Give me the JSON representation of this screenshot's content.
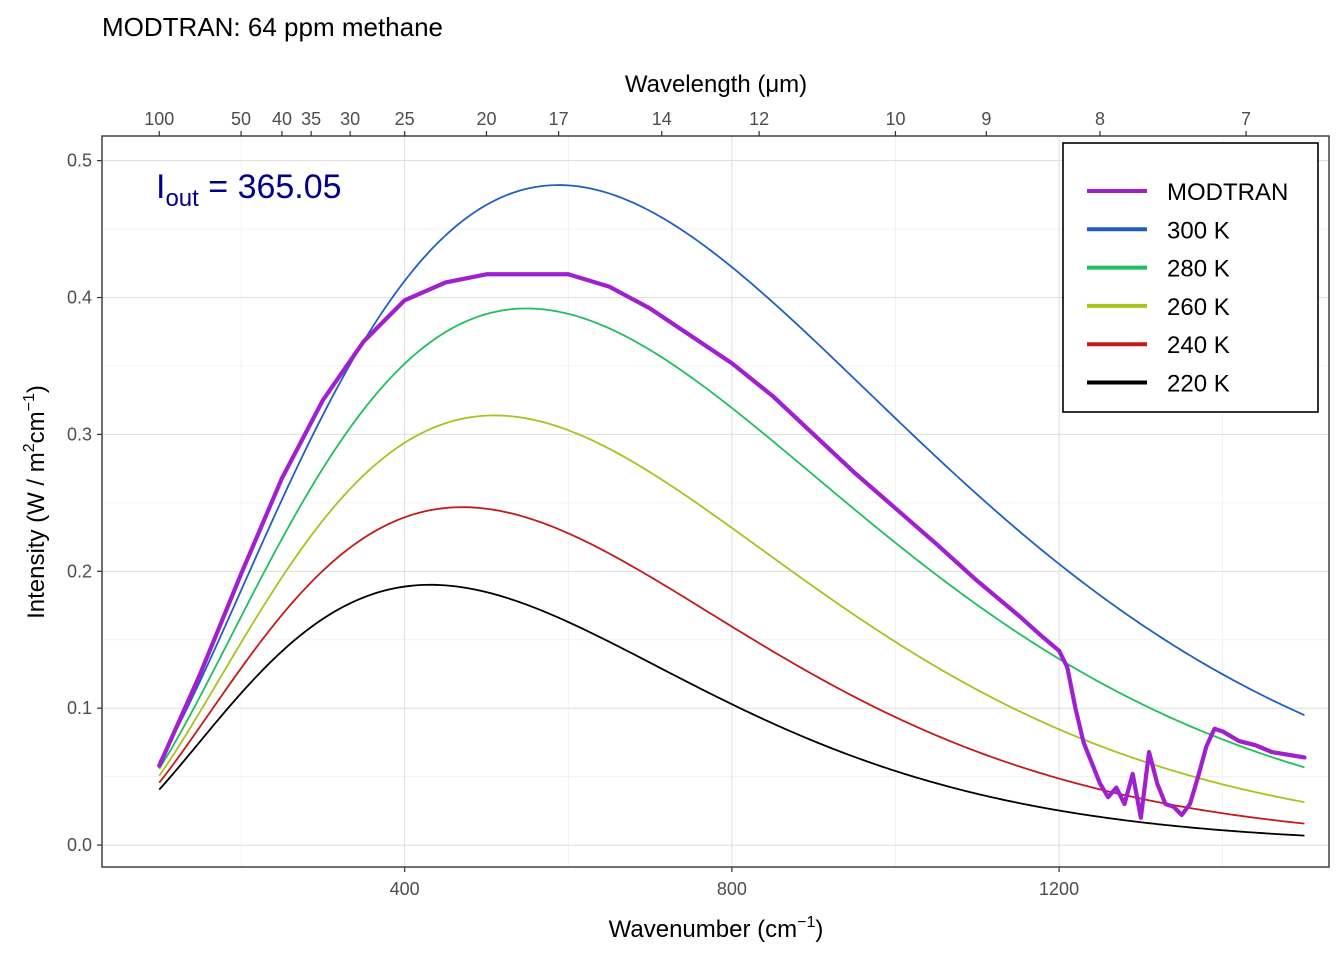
{
  "chart_data": {
    "type": "line",
    "title": "MODTRAN: 64 ppm methane",
    "xlabel": "Wavenumber (cm",
    "xlabel_sup": "−1",
    "xlabel_end": ")",
    "ylabel": "Intensity (W / m",
    "ylabel_sup1": "2",
    "ylabel_mid": "cm",
    "ylabel_sup2": "−1",
    "ylabel_end": ")",
    "x2label": "Wavelength (μm)",
    "annotation": {
      "label": "I",
      "label_sub": "out",
      "label_eq": " = ",
      "value": "365.05",
      "color": "#00008b"
    },
    "xlim": [
      30,
      1530
    ],
    "ylim": [
      -0.016,
      0.518
    ],
    "x_ticks": [
      400,
      800,
      1200
    ],
    "x_tick_labels": [
      "400",
      "800",
      "1200"
    ],
    "y_ticks": [
      0.0,
      0.1,
      0.2,
      0.3,
      0.4,
      0.5
    ],
    "y_tick_labels": [
      "0.0",
      "0.1",
      "0.2",
      "0.3",
      "0.4",
      "0.5"
    ],
    "x2_ticks": [
      100,
      50,
      40,
      35,
      30,
      25,
      20,
      17,
      14,
      12,
      10,
      9,
      8,
      7
    ],
    "x2_tick_labels": [
      "100",
      "50",
      "40",
      "35",
      "30",
      "25",
      "20",
      "17",
      "14",
      "12",
      "10",
      "9",
      "8",
      "7"
    ],
    "grid": true,
    "legend_position": "top-right",
    "series": [
      {
        "name": "MODTRAN",
        "color": "#a020d0",
        "kind": "modtran",
        "x": [
          100,
          150,
          200,
          250,
          300,
          350,
          400,
          450,
          500,
          550,
          600,
          650,
          700,
          750,
          800,
          850,
          900,
          950,
          1000,
          1050,
          1100,
          1150,
          1180,
          1200,
          1210,
          1220,
          1230,
          1240,
          1250,
          1260,
          1270,
          1280,
          1290,
          1300,
          1310,
          1320,
          1330,
          1340,
          1350,
          1360,
          1370,
          1380,
          1390,
          1400,
          1420,
          1440,
          1460,
          1480,
          1500
        ],
        "y": [
          0.058,
          0.125,
          0.198,
          0.268,
          0.325,
          0.368,
          0.398,
          0.411,
          0.417,
          0.417,
          0.417,
          0.408,
          0.392,
          0.372,
          0.352,
          0.328,
          0.3,
          0.272,
          0.246,
          0.22,
          0.193,
          0.168,
          0.152,
          0.142,
          0.13,
          0.1,
          0.075,
          0.06,
          0.045,
          0.035,
          0.042,
          0.03,
          0.052,
          0.02,
          0.068,
          0.045,
          0.03,
          0.028,
          0.022,
          0.03,
          0.05,
          0.072,
          0.085,
          0.083,
          0.076,
          0.073,
          0.068,
          0.066,
          0.064
        ]
      },
      {
        "name": "300 K",
        "color": "#1f5fc4",
        "kind": "planck",
        "T": 300
      },
      {
        "name": "280 K",
        "color": "#1fbf5f",
        "kind": "planck",
        "T": 280
      },
      {
        "name": "260 K",
        "color": "#a8c21e",
        "kind": "planck",
        "T": 260
      },
      {
        "name": "240 K",
        "color": "#c41a1a",
        "kind": "planck",
        "T": 240
      },
      {
        "name": "220 K",
        "color": "#000000",
        "kind": "planck",
        "T": 220
      }
    ]
  }
}
